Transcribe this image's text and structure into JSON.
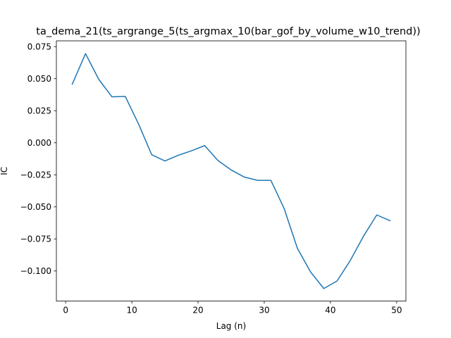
{
  "chart_data": {
    "type": "line",
    "title": "ta_dema_21(ts_argrange_5(ts_argmax_10(bar_gof_by_volume_w10_trend))",
    "xlabel": "Lag (n)",
    "ylabel": "IC",
    "xlim": [
      -1.4,
      51.4
    ],
    "ylim": [
      -0.1235,
      0.0795
    ],
    "x_ticks": [
      0,
      10,
      20,
      30,
      40,
      50
    ],
    "x_tick_labels": [
      "0",
      "10",
      "20",
      "30",
      "40",
      "50"
    ],
    "y_ticks": [
      -0.1,
      -0.075,
      -0.05,
      -0.025,
      0.0,
      0.025,
      0.05,
      0.075
    ],
    "y_tick_labels": [
      "−0.100",
      "−0.075",
      "−0.050",
      "−0.025",
      "0.000",
      "0.025",
      "0.050",
      "0.075"
    ],
    "grid": false,
    "legend": "none",
    "series": [
      {
        "color": "#1f77b4",
        "x": [
          1,
          3,
          5,
          7,
          9,
          11,
          13,
          15,
          17,
          19,
          21,
          23,
          25,
          27,
          29,
          31,
          33,
          35,
          37,
          39,
          41,
          43,
          45,
          47,
          49
        ],
        "y": [
          0.0457,
          0.0695,
          0.0495,
          0.0358,
          0.0362,
          0.0148,
          -0.0093,
          -0.0142,
          -0.0098,
          -0.0063,
          -0.0022,
          -0.0138,
          -0.0212,
          -0.0268,
          -0.0293,
          -0.0293,
          -0.0512,
          -0.0822,
          -0.1008,
          -0.1137,
          -0.1078,
          -0.0918,
          -0.0728,
          -0.0563,
          -0.0608
        ]
      }
    ]
  }
}
